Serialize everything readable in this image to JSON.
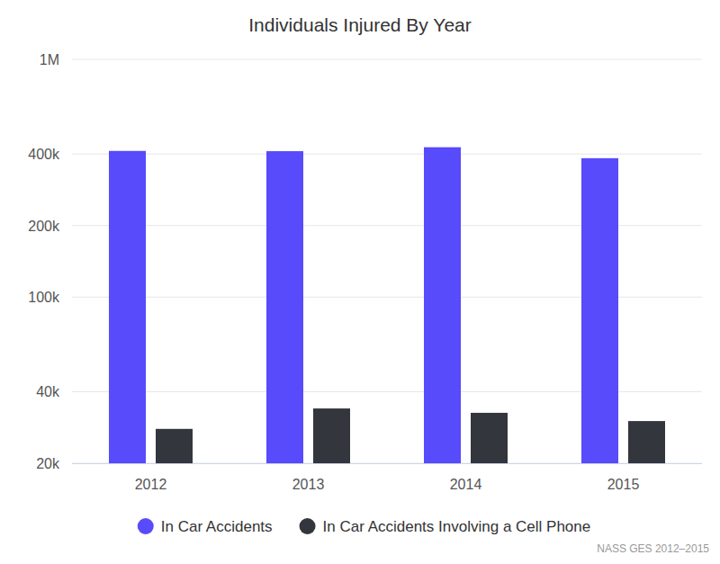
{
  "chart_data": {
    "type": "bar",
    "title": "Individuals Injured By Year",
    "source": "NASS GES 2012–2015",
    "categories": [
      "2012",
      "2013",
      "2014",
      "2015"
    ],
    "series": [
      {
        "name": "In Car Accidents",
        "color": "#574bfb",
        "values": [
          412000,
          411000,
          427000,
          384000
        ]
      },
      {
        "name": "In Car Accidents Involving a Cell Phone",
        "color": "#33373d",
        "values": [
          27900,
          34000,
          32600,
          30100
        ]
      }
    ],
    "ylim": [
      20000,
      1000000
    ],
    "yticks": [
      {
        "value": 20000,
        "label": "20k"
      },
      {
        "value": 40000,
        "label": "40k"
      },
      {
        "value": 100000,
        "label": "100k"
      },
      {
        "value": 200000,
        "label": "200k"
      },
      {
        "value": 400000,
        "label": "400k"
      },
      {
        "value": 1000000,
        "label": "1M"
      }
    ],
    "log": "y",
    "grid": true,
    "legend": "bottom"
  }
}
